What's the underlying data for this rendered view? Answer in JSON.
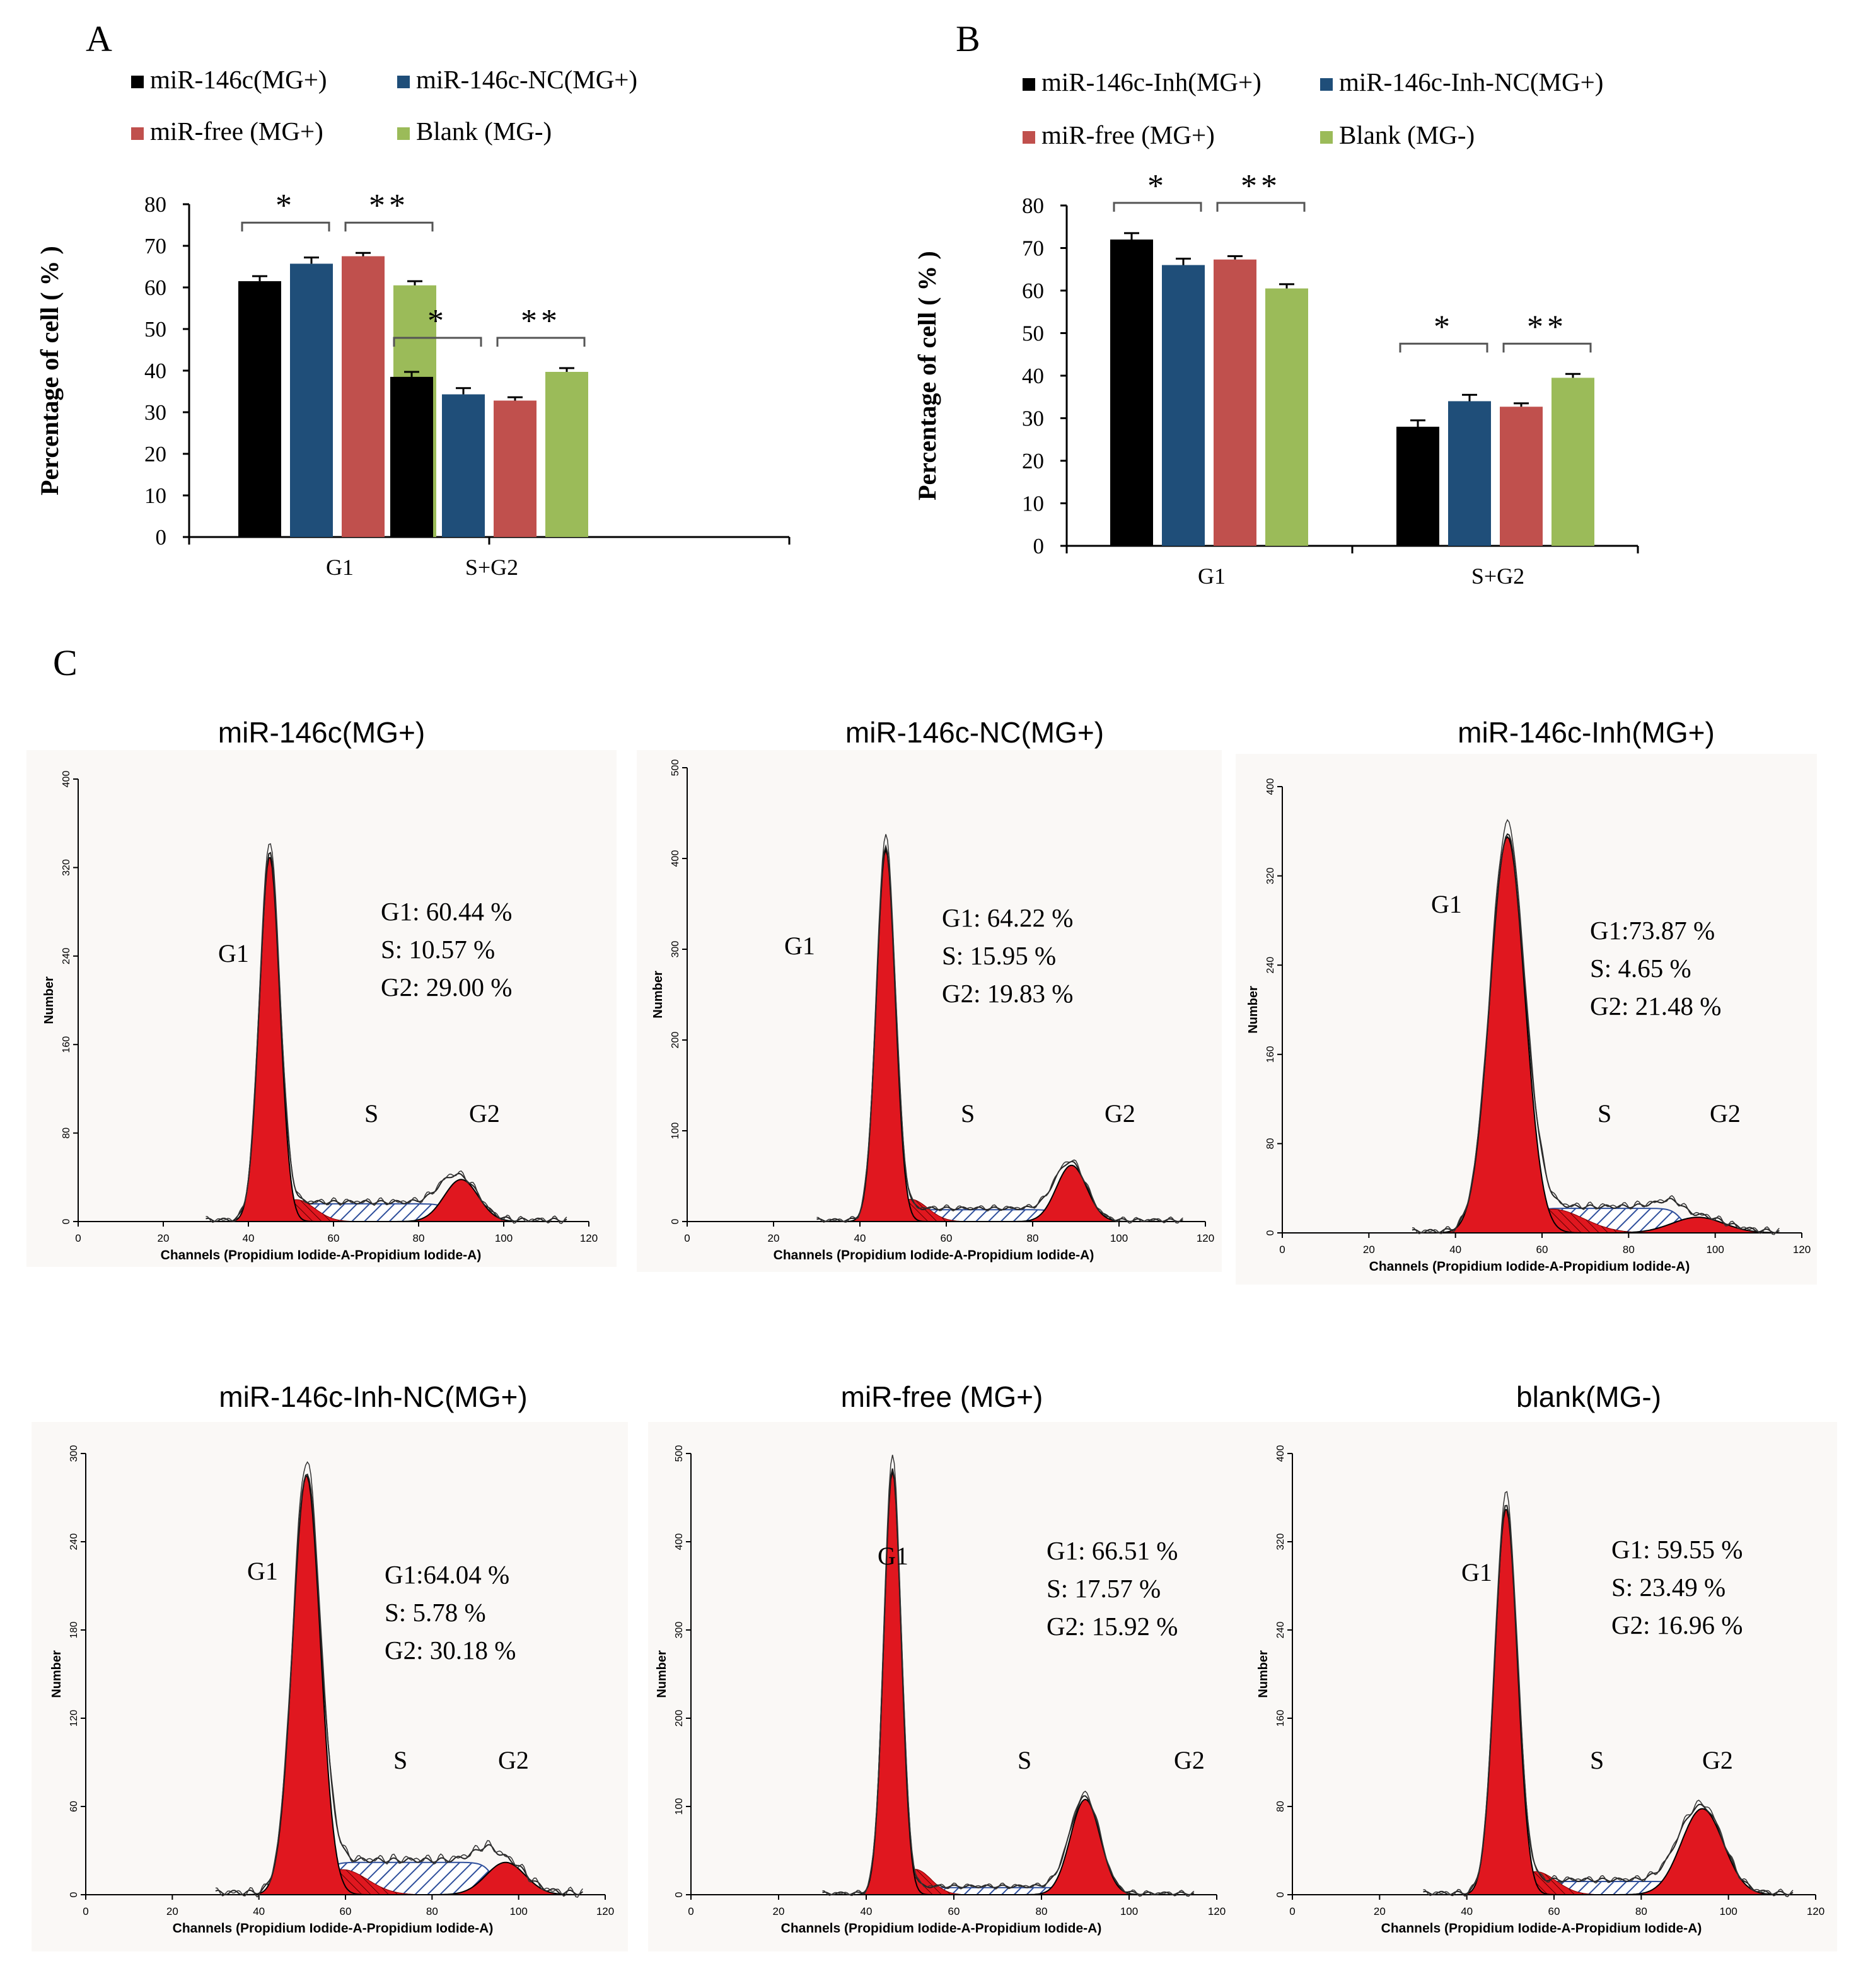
{
  "panels": {
    "a": "A",
    "b": "B",
    "c": "C"
  },
  "colors": {
    "black": "#000000",
    "blue": "#1f4e79",
    "red": "#c0504d",
    "green": "#9bbb59",
    "histogram_fill": "#e0171f",
    "s_hatch": "#2e4f9c"
  },
  "chart_data": [
    {
      "panel": "A",
      "type": "bar",
      "ylabel": "Percentage of cell ( % )",
      "xlabel": "",
      "ylim": [
        0,
        80
      ],
      "yticks": [
        0,
        10,
        20,
        30,
        40,
        50,
        60,
        70,
        80
      ],
      "categories": [
        "G1",
        "S+G2"
      ],
      "legend_position": "top",
      "series": [
        {
          "name": "miR-146c(MG+)",
          "color": "#000000",
          "values": [
            61.5,
            38.5
          ],
          "errors": [
            1.2,
            1.2
          ]
        },
        {
          "name": "miR-146c-NC(MG+)",
          "color": "#1f4e79",
          "values": [
            65.7,
            34.3
          ],
          "errors": [
            1.5,
            1.5
          ]
        },
        {
          "name": "miR-free (MG+)",
          "color": "#c0504d",
          "values": [
            67.5,
            32.8
          ],
          "errors": [
            0.8,
            0.8
          ]
        },
        {
          "name": "Blank (MG-)",
          "color": "#9bbb59",
          "values": [
            60.5,
            39.7
          ],
          "errors": [
            1.0,
            0.9
          ]
        }
      ],
      "significance": [
        {
          "category": 0,
          "from": 0,
          "to": 1,
          "label": "*"
        },
        {
          "category": 0,
          "from": 2,
          "to": 3,
          "label": "**"
        },
        {
          "category": 1,
          "from": 0,
          "to": 1,
          "label": "*"
        },
        {
          "category": 1,
          "from": 2,
          "to": 3,
          "label": "**"
        }
      ]
    },
    {
      "panel": "B",
      "type": "bar",
      "ylabel": "Percentage of cell ( % )",
      "xlabel": "",
      "ylim": [
        0,
        80
      ],
      "yticks": [
        0,
        10,
        20,
        30,
        40,
        50,
        60,
        70,
        80
      ],
      "categories": [
        "G1",
        "S+G2"
      ],
      "legend_position": "top",
      "series": [
        {
          "name": "miR-146c-Inh(MG+)",
          "color": "#000000",
          "values": [
            72.0,
            28.0
          ],
          "errors": [
            1.5,
            1.5
          ]
        },
        {
          "name": "miR-146c-Inh-NC(MG+)",
          "color": "#1f4e79",
          "values": [
            66.0,
            34.0
          ],
          "errors": [
            1.5,
            1.5
          ]
        },
        {
          "name": "miR-free (MG+)",
          "color": "#c0504d",
          "values": [
            67.3,
            32.7
          ],
          "errors": [
            0.8,
            0.8
          ]
        },
        {
          "name": "Blank (MG-)",
          "color": "#9bbb59",
          "values": [
            60.5,
            39.5
          ],
          "errors": [
            1.0,
            0.9
          ]
        }
      ],
      "significance": [
        {
          "category": 0,
          "from": 0,
          "to": 1,
          "label": "*"
        },
        {
          "category": 0,
          "from": 2,
          "to": 3,
          "label": "**"
        },
        {
          "category": 1,
          "from": 0,
          "to": 1,
          "label": "*"
        },
        {
          "category": 1,
          "from": 2,
          "to": 3,
          "label": "**"
        }
      ]
    },
    {
      "panel": "C",
      "type": "histogram",
      "xlabel": "Channels (Propidium Iodide-A-Propidium Iodide-A)",
      "ylabel": "Number",
      "xlim": [
        0,
        120
      ],
      "xticks": [
        0,
        20,
        40,
        60,
        80,
        100,
        120
      ],
      "phase_labels": {
        "g1": "G1",
        "s": "S",
        "g2": "G2"
      },
      "plots": [
        {
          "title": "miR-146c(MG+)",
          "ymax": 400,
          "yticks": [
            0,
            80,
            160,
            240,
            320,
            400
          ],
          "stats": [
            "G1:  60.44 %",
            "S:    10.57 %",
            "G2:  29.00 %"
          ],
          "g1_mean": 45,
          "g1_sd": 2.4,
          "g1_peak": 330,
          "g2_mean": 90,
          "g2_sd": 4.0,
          "g2_peak": 38,
          "s_level": 16
        },
        {
          "title": "miR-146c-NC(MG+)",
          "ymax": 500,
          "yticks": [
            0,
            100,
            200,
            300,
            400,
            500
          ],
          "stats": [
            "G1:  64.22  %",
            "S:    15.95 %",
            "G2:  19.83  %"
          ],
          "g1_mean": 46,
          "g1_sd": 2.2,
          "g1_peak": 410,
          "g2_mean": 89,
          "g2_sd": 3.5,
          "g2_peak": 62,
          "s_level": 13
        },
        {
          "title": "miR-146c-Inh(MG+)",
          "ymax": 400,
          "yticks": [
            0,
            80,
            160,
            240,
            320,
            400
          ],
          "stats": [
            "G1:73.87  %",
            "S:       4.65  %",
            "G2:   21.48  %"
          ],
          "g1_mean": 52,
          "g1_sd": 4.0,
          "g1_peak": 355,
          "g2_mean": 96,
          "g2_sd": 6.0,
          "g2_peak": 14,
          "s_level": 22
        },
        {
          "title": "miR-146c-Inh-NC(MG+)",
          "ymax": 300,
          "yticks": [
            0,
            60,
            120,
            180,
            240,
            300
          ],
          "stats": [
            "G1:64.04  %",
            "S:       5.78  %",
            "G2:  30.18   %"
          ],
          "g1_mean": 51,
          "g1_sd": 3.2,
          "g1_peak": 285,
          "g2_mean": 97,
          "g2_sd": 4.5,
          "g2_peak": 22,
          "s_level": 22
        },
        {
          "title": "miR-free (MG+)",
          "ymax": 500,
          "yticks": [
            0,
            100,
            200,
            300,
            400,
            500
          ],
          "stats": [
            "G1:  66.51 %",
            "S:    17.57 %",
            "G2:  15.92  %"
          ],
          "g1_mean": 46,
          "g1_sd": 2.0,
          "g1_peak": 480,
          "g2_mean": 90,
          "g2_sd": 3.4,
          "g2_peak": 108,
          "s_level": 8
        },
        {
          "title": "blank(MG-)",
          "ymax": 400,
          "yticks": [
            0,
            80,
            160,
            240,
            320,
            400
          ],
          "stats": [
            "G1:  59.55  %",
            "S:    23.49  %",
            "G2:  16.96  %"
          ],
          "g1_mean": 49,
          "g1_sd": 2.6,
          "g1_peak": 350,
          "g2_mean": 94,
          "g2_sd": 4.8,
          "g2_peak": 78,
          "s_level": 12
        }
      ]
    }
  ]
}
